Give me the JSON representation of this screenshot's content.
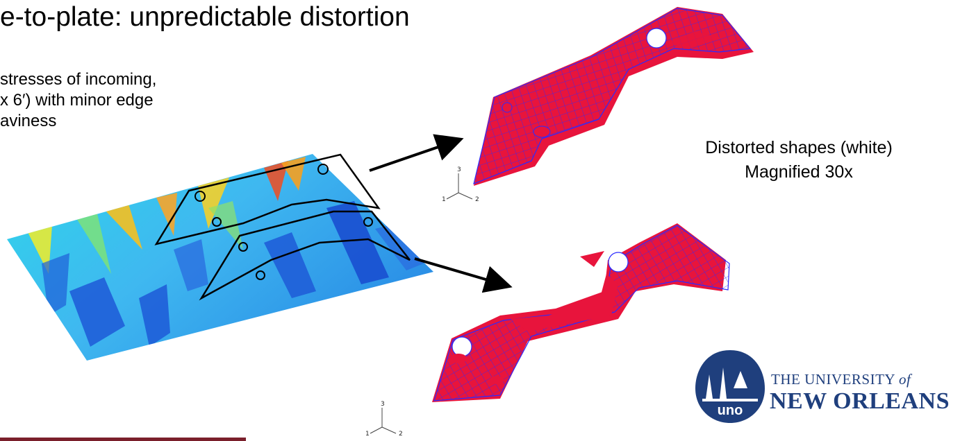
{
  "title": "e-to-plate:  unpredictable distortion",
  "description_lines": [
    "stresses of incoming,",
    "x 6′) with minor edge",
    "aviness"
  ],
  "caption": {
    "line1": "Distorted shapes (white)",
    "line2": "Magnified 30x"
  },
  "triad_labels": {
    "axis3": "3",
    "axis1": "1",
    "axis2": "2"
  },
  "logo": {
    "line1_prefix": "THE UNIVERSITY ",
    "line1_of": "of",
    "line2": "NEW ORLEANS",
    "seal_text": "uno"
  },
  "colors": {
    "mesh": "#2b2bff",
    "distortion": "#e8143c",
    "plate_cyan": "#27d3e6",
    "plate_blue": "#1f5ed8",
    "university_blue": "#1f3f7d",
    "rule": "#7a1f2b"
  }
}
